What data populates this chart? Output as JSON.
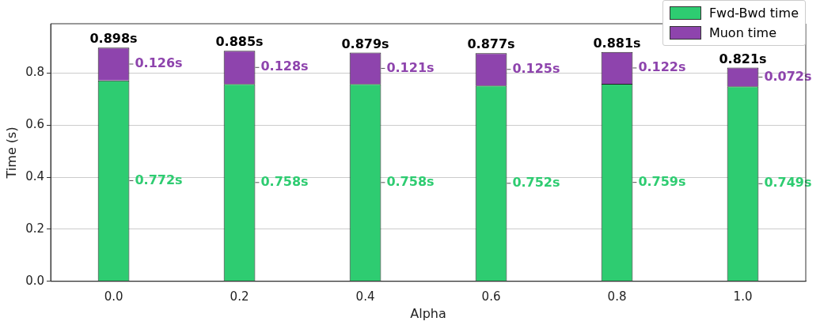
{
  "chart_data": {
    "type": "bar",
    "stacked": true,
    "xlabel": "Alpha",
    "ylabel": "Time (s)",
    "categories": [
      "0.0",
      "0.2",
      "0.4",
      "0.6",
      "0.8",
      "1.0"
    ],
    "series": [
      {
        "name": "Fwd-Bwd time",
        "color": "#2ecc71",
        "values": [
          0.772,
          0.758,
          0.758,
          0.752,
          0.759,
          0.749
        ],
        "value_labels": [
          "0.772s",
          "0.758s",
          "0.758s",
          "0.752s",
          "0.759s",
          "0.749s"
        ]
      },
      {
        "name": "Muon time",
        "color": "#8e44ad",
        "values": [
          0.126,
          0.128,
          0.121,
          0.125,
          0.122,
          0.072
        ],
        "value_labels": [
          "0.126s",
          "0.128s",
          "0.121s",
          "0.125s",
          "0.122s",
          "0.072s"
        ]
      }
    ],
    "totals": [
      "0.898s",
      "0.885s",
      "0.879s",
      "0.877s",
      "0.881s",
      "0.821s"
    ],
    "ylim": [
      0,
      0.99
    ],
    "yticks": [
      {
        "value": 0,
        "label": "0.0"
      },
      {
        "value": 0.2,
        "label": "0.2"
      },
      {
        "value": 0.4,
        "label": "0.4"
      },
      {
        "value": 0.6,
        "label": "0.6"
      },
      {
        "value": 0.8,
        "label": "0.8"
      }
    ],
    "grid": "y",
    "legend": "top right"
  }
}
